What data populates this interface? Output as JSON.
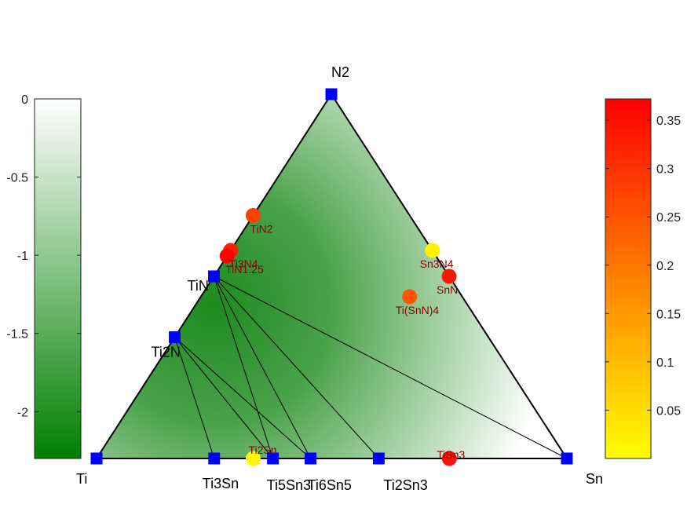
{
  "chart_data": {
    "type": "scatter",
    "title": "",
    "vertices": [
      {
        "name": "Ti",
        "composition": [
          1,
          0,
          0
        ]
      },
      {
        "name": "Sn",
        "composition": [
          0,
          1,
          0
        ]
      },
      {
        "name": "N2",
        "composition": [
          0,
          0,
          1
        ]
      }
    ],
    "stable_phases": [
      {
        "label": "Ti",
        "sn_frac": 0.0,
        "n_frac": 0.0
      },
      {
        "label": "N2",
        "sn_frac": 0.0,
        "n_frac": 1.0
      },
      {
        "label": "Sn",
        "sn_frac": 1.0,
        "n_frac": 0.0
      },
      {
        "label": "TiN",
        "sn_frac": 0.0,
        "n_frac": 0.5
      },
      {
        "label": "Ti2N",
        "sn_frac": 0.0,
        "n_frac": 0.333
      },
      {
        "label": "Ti3Sn",
        "sn_frac": 0.25,
        "n_frac": 0.0
      },
      {
        "label": "Ti5Sn3",
        "sn_frac": 0.375,
        "n_frac": 0.0
      },
      {
        "label": "Ti6Sn5",
        "sn_frac": 0.455,
        "n_frac": 0.0
      },
      {
        "label": "Ti2Sn3",
        "sn_frac": 0.6,
        "n_frac": 0.0
      }
    ],
    "tie_lines": [
      [
        "Ti",
        "N2"
      ],
      [
        "N2",
        "Sn"
      ],
      [
        "Ti",
        "Sn"
      ],
      [
        "TiN",
        "Ti6Sn5"
      ],
      [
        "TiN",
        "Ti2Sn3"
      ],
      [
        "TiN",
        "Ti5Sn3"
      ],
      [
        "TiN",
        "Sn"
      ],
      [
        "Ti2N",
        "Ti3Sn"
      ],
      [
        "Ti2N",
        "Ti5Sn3"
      ],
      [
        "Ti2N",
        "Ti6Sn5"
      ]
    ],
    "unstable_phases": [
      {
        "label": "TiN2",
        "sn_frac": 0.0,
        "n_frac": 0.667,
        "e_above_hull": 0.28
      },
      {
        "label": "Ti3N4",
        "sn_frac": 0.0,
        "n_frac": 0.571,
        "e_above_hull": 0.33
      },
      {
        "label": "TiN1.25",
        "sn_frac": 0.0,
        "n_frac": 0.556,
        "e_above_hull": 0.37
      },
      {
        "label": "Sn3N4",
        "sn_frac": 0.429,
        "n_frac": 0.571,
        "e_above_hull": 0.02
      },
      {
        "label": "SnN",
        "sn_frac": 0.5,
        "n_frac": 0.5,
        "e_above_hull": 0.34
      },
      {
        "label": "Ti(SnN)4",
        "sn_frac": 0.444,
        "n_frac": 0.444,
        "e_above_hull": 0.25
      },
      {
        "label": "Ti2Sn",
        "sn_frac": 0.333,
        "n_frac": 0.0,
        "e_above_hull": 0.01
      },
      {
        "label": "TiSn3",
        "sn_frac": 0.75,
        "n_frac": 0.0,
        "e_above_hull": 0.35
      }
    ],
    "formation_energy_colorbar": {
      "ylim": [
        -2.3,
        0
      ],
      "ticks": [
        "0",
        "-0.5",
        "-1",
        "-1.5",
        "-2"
      ],
      "tick_values": [
        0,
        -0.5,
        -1,
        -1.5,
        -2
      ],
      "colors": [
        "#008000",
        "#ffffff"
      ]
    },
    "hull_energy_colorbar": {
      "ylim": [
        0,
        0.372
      ],
      "ticks": [
        "0.35",
        "0.3",
        "0.25",
        "0.2",
        "0.15",
        "0.1",
        "0.05"
      ],
      "tick_values": [
        0.35,
        0.3,
        0.25,
        0.2,
        0.15,
        0.1,
        0.05
      ],
      "colors": [
        "#ffff00",
        "#ff8000",
        "#ff0000"
      ]
    },
    "colors": {
      "stable_marker": "#0000ff",
      "unstable_label": "#8b0000",
      "tie_line": "#000000"
    }
  }
}
